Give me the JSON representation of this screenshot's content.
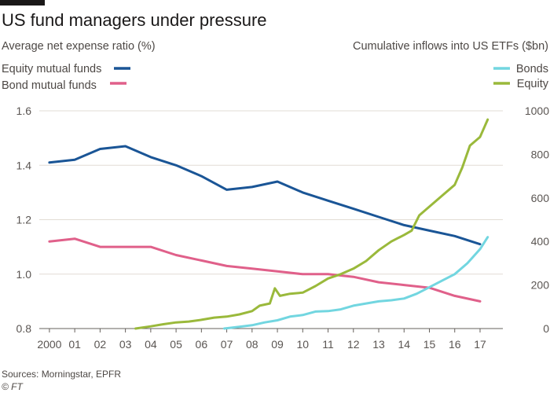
{
  "chart_data": {
    "type": "line",
    "title": "US fund managers under pressure",
    "left_axis_title": "Average net expense ratio (%)",
    "right_axis_title": "Cumulative inflows into US ETFs ($bn)",
    "x_ticks": [
      "2000",
      "01",
      "02",
      "03",
      "04",
      "05",
      "06",
      "07",
      "08",
      "09",
      "10",
      "11",
      "12",
      "13",
      "14",
      "15",
      "16",
      "17"
    ],
    "x_tick_values": [
      2000,
      2001,
      2002,
      2003,
      2004,
      2005,
      2006,
      2007,
      2008,
      2009,
      2010,
      2011,
      2012,
      2013,
      2014,
      2015,
      2016,
      2017
    ],
    "xlim": [
      1999.6,
      2017.9
    ],
    "left_ylim": [
      0.8,
      1.6
    ],
    "left_ticks": [
      "0.8",
      "1.0",
      "1.2",
      "1.4",
      "1.6"
    ],
    "left_tick_values": [
      0.8,
      1.0,
      1.2,
      1.4,
      1.6
    ],
    "right_ylim": [
      0,
      1000
    ],
    "right_ticks": [
      "0",
      "200",
      "400",
      "600",
      "800",
      "1000"
    ],
    "right_tick_values": [
      0,
      200,
      400,
      600,
      800,
      1000
    ],
    "grid": true,
    "series": [
      {
        "name": "Equity mutual funds",
        "axis": "left",
        "color": "#1a5596",
        "x": [
          2000,
          2001,
          2002,
          2003,
          2004,
          2005,
          2006,
          2007,
          2008,
          2009,
          2010,
          2011,
          2012,
          2013,
          2014,
          2015,
          2016,
          2017
        ],
        "y": [
          1.41,
          1.42,
          1.46,
          1.47,
          1.43,
          1.4,
          1.36,
          1.31,
          1.32,
          1.34,
          1.3,
          1.27,
          1.24,
          1.21,
          1.18,
          1.16,
          1.14,
          1.11
        ]
      },
      {
        "name": "Bond mutual funds",
        "axis": "left",
        "color": "#e0608a",
        "x": [
          2000,
          2001,
          2002,
          2003,
          2004,
          2005,
          2006,
          2007,
          2008,
          2009,
          2010,
          2011,
          2012,
          2013,
          2014,
          2015,
          2016,
          2017
        ],
        "y": [
          1.12,
          1.13,
          1.1,
          1.1,
          1.1,
          1.07,
          1.05,
          1.03,
          1.02,
          1.01,
          1.0,
          1.0,
          0.99,
          0.97,
          0.96,
          0.95,
          0.92,
          0.9
        ]
      },
      {
        "name": "Bonds",
        "axis": "right",
        "color": "#72d6e0",
        "x": [
          2006.9,
          2007.5,
          2008,
          2008.5,
          2009,
          2009.5,
          2010,
          2010.5,
          2011,
          2011.5,
          2012,
          2012.5,
          2013,
          2013.5,
          2014,
          2014.5,
          2015,
          2015.5,
          2016,
          2016.5,
          2017,
          2017.3
        ],
        "y": [
          0,
          8,
          15,
          28,
          38,
          55,
          62,
          78,
          80,
          88,
          105,
          115,
          125,
          130,
          138,
          160,
          190,
          220,
          250,
          300,
          365,
          420
        ]
      },
      {
        "name": "Equity",
        "axis": "right",
        "color": "#9ab93b",
        "x": [
          2003.4,
          2004,
          2004.5,
          2005,
          2005.5,
          2006,
          2006.5,
          2007,
          2007.5,
          2008,
          2008.3,
          2008.7,
          2008.9,
          2009.1,
          2009.5,
          2010,
          2010.5,
          2011,
          2011.5,
          2012,
          2012.5,
          2013,
          2013.5,
          2014,
          2014.3,
          2014.6,
          2015,
          2015.5,
          2016,
          2016.3,
          2016.6,
          2017,
          2017.3
        ],
        "y": [
          0,
          10,
          20,
          28,
          32,
          40,
          50,
          55,
          65,
          80,
          105,
          115,
          185,
          150,
          160,
          165,
          195,
          230,
          250,
          275,
          310,
          360,
          400,
          430,
          450,
          520,
          560,
          610,
          660,
          740,
          840,
          880,
          960
        ]
      }
    ],
    "legend_left": [
      "Equity mutual funds",
      "Bond mutual funds"
    ],
    "legend_right": [
      "Bonds",
      "Equity"
    ],
    "source": "Sources: Morningstar, EPFR",
    "credit": "© FT"
  }
}
